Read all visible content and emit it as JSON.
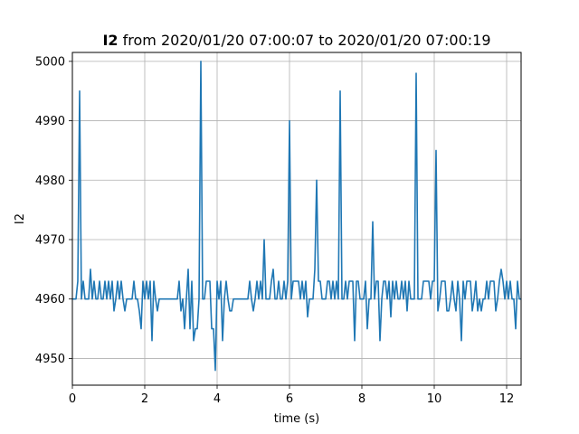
{
  "chart_data": {
    "type": "line",
    "title": {
      "bold_part": "I2",
      "rest": " from 2020/01/20 07:00:07 to 2020/01/20 07:00:19"
    },
    "xlabel": "time (s)",
    "ylabel": "I2",
    "xlim": [
      0,
      12.4
    ],
    "ylim": [
      4945.5,
      5001.5
    ],
    "xticks": [
      0,
      2,
      4,
      6,
      8,
      10,
      12
    ],
    "yticks": [
      4950,
      4960,
      4970,
      4980,
      4990,
      5000
    ],
    "grid": true,
    "series": [
      {
        "color": "#1f77b4",
        "x": [
          0.0,
          0.05,
          0.1,
          0.15,
          0.2,
          0.25,
          0.3,
          0.35,
          0.4,
          0.45,
          0.5,
          0.55,
          0.6,
          0.65,
          0.7,
          0.75,
          0.8,
          0.85,
          0.9,
          0.95,
          1.0,
          1.05,
          1.1,
          1.15,
          1.2,
          1.25,
          1.3,
          1.35,
          1.4,
          1.45,
          1.5,
          1.55,
          1.6,
          1.65,
          1.7,
          1.75,
          1.8,
          1.85,
          1.9,
          1.95,
          2.0,
          2.05,
          2.1,
          2.15,
          2.2,
          2.25,
          2.3,
          2.35,
          2.4,
          2.45,
          2.5,
          2.55,
          2.6,
          2.65,
          2.7,
          2.75,
          2.8,
          2.85,
          2.9,
          2.95,
          3.0,
          3.05,
          3.1,
          3.15,
          3.2,
          3.25,
          3.3,
          3.35,
          3.4,
          3.45,
          3.5,
          3.55,
          3.6,
          3.65,
          3.7,
          3.75,
          3.8,
          3.85,
          3.9,
          3.95,
          4.0,
          4.05,
          4.1,
          4.15,
          4.2,
          4.25,
          4.3,
          4.35,
          4.4,
          4.45,
          4.5,
          4.55,
          4.6,
          4.65,
          4.7,
          4.75,
          4.8,
          4.85,
          4.9,
          4.95,
          5.0,
          5.05,
          5.1,
          5.15,
          5.2,
          5.25,
          5.3,
          5.35,
          5.4,
          5.45,
          5.5,
          5.55,
          5.6,
          5.65,
          5.7,
          5.75,
          5.8,
          5.85,
          5.9,
          5.95,
          6.0,
          6.05,
          6.1,
          6.15,
          6.2,
          6.25,
          6.3,
          6.35,
          6.4,
          6.45,
          6.5,
          6.55,
          6.6,
          6.65,
          6.7,
          6.75,
          6.8,
          6.85,
          6.9,
          6.95,
          7.0,
          7.05,
          7.1,
          7.15,
          7.2,
          7.25,
          7.3,
          7.35,
          7.4,
          7.45,
          7.5,
          7.55,
          7.6,
          7.65,
          7.7,
          7.75,
          7.8,
          7.85,
          7.9,
          7.95,
          8.0,
          8.05,
          8.1,
          8.15,
          8.2,
          8.25,
          8.3,
          8.35,
          8.4,
          8.45,
          8.5,
          8.55,
          8.6,
          8.65,
          8.7,
          8.75,
          8.8,
          8.85,
          8.9,
          8.95,
          9.0,
          9.05,
          9.1,
          9.15,
          9.2,
          9.25,
          9.3,
          9.35,
          9.4,
          9.45,
          9.5,
          9.55,
          9.6,
          9.65,
          9.7,
          9.75,
          9.8,
          9.85,
          9.9,
          9.95,
          10.0,
          10.05,
          10.1,
          10.15,
          10.2,
          10.25,
          10.3,
          10.35,
          10.4,
          10.45,
          10.5,
          10.55,
          10.6,
          10.65,
          10.7,
          10.75,
          10.8,
          10.85,
          10.9,
          10.95,
          11.0,
          11.05,
          11.1,
          11.15,
          11.2,
          11.25,
          11.3,
          11.35,
          11.4,
          11.45,
          11.5,
          11.55,
          11.6,
          11.65,
          11.7,
          11.75,
          11.8,
          11.85,
          11.9,
          11.95,
          12.0,
          12.05,
          12.1,
          12.15,
          12.2,
          12.25,
          12.3,
          12.35,
          12.4
        ],
        "y": [
          4960,
          4960,
          4960,
          4963,
          4995,
          4960,
          4963,
          4960,
          4960,
          4960,
          4965,
          4960,
          4963,
          4960,
          4960,
          4963,
          4960,
          4960,
          4963,
          4960,
          4963,
          4960,
          4963,
          4958,
          4960,
          4963,
          4960,
          4963,
          4960,
          4958,
          4960,
          4960,
          4960,
          4960,
          4963,
          4960,
          4960,
          4958,
          4955,
          4963,
          4960,
          4963,
          4960,
          4963,
          4953,
          4963,
          4960,
          4958,
          4960,
          4960,
          4960,
          4960,
          4960,
          4960,
          4960,
          4960,
          4960,
          4960,
          4960,
          4963,
          4958,
          4960,
          4955,
          4960,
          4965,
          4955,
          4963,
          4953,
          4955,
          4955,
          4960,
          5000,
          4960,
          4960,
          4963,
          4963,
          4963,
          4955,
          4955,
          4948,
          4963,
          4960,
          4963,
          4953,
          4960,
          4963,
          4960,
          4958,
          4958,
          4960,
          4960,
          4960,
          4960,
          4960,
          4960,
          4960,
          4960,
          4960,
          4963,
          4960,
          4958,
          4960,
          4963,
          4960,
          4963,
          4960,
          4970,
          4960,
          4960,
          4960,
          4963,
          4965,
          4960,
          4960,
          4963,
          4960,
          4960,
          4963,
          4960,
          4963,
          4990,
          4960,
          4963,
          4963,
          4963,
          4963,
          4960,
          4963,
          4960,
          4963,
          4957,
          4960,
          4960,
          4960,
          4965,
          4980,
          4963,
          4963,
          4960,
          4960,
          4960,
          4963,
          4963,
          4960,
          4963,
          4960,
          4963,
          4960,
          4995,
          4960,
          4960,
          4963,
          4960,
          4963,
          4963,
          4963,
          4953,
          4963,
          4963,
          4960,
          4960,
          4960,
          4963,
          4955,
          4960,
          4960,
          4973,
          4960,
          4963,
          4963,
          4953,
          4960,
          4963,
          4963,
          4960,
          4963,
          4957,
          4963,
          4960,
          4963,
          4960,
          4960,
          4963,
          4960,
          4963,
          4958,
          4963,
          4960,
          4960,
          4960,
          4998,
          4960,
          4960,
          4960,
          4963,
          4963,
          4963,
          4963,
          4960,
          4963,
          4963,
          4985,
          4958,
          4960,
          4963,
          4963,
          4963,
          4958,
          4958,
          4960,
          4963,
          4960,
          4958,
          4963,
          4960,
          4953,
          4963,
          4960,
          4963,
          4963,
          4963,
          4958,
          4960,
          4963,
          4958,
          4960,
          4958,
          4960,
          4960,
          4963,
          4960,
          4963,
          4963,
          4963,
          4958,
          4960,
          4963,
          4965,
          4963,
          4960,
          4963,
          4960,
          4963,
          4960,
          4960,
          4955,
          4963,
          4960,
          4960
        ]
      }
    ]
  }
}
